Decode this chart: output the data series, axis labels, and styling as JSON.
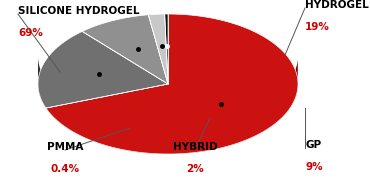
{
  "slices": [
    {
      "label": "SILICONE HYDROGEL",
      "pct_label": "69%",
      "value": 69.0,
      "color": "#cc1111",
      "edge_color": "#7a0000"
    },
    {
      "label": "HYDROGEL",
      "pct_label": "19%",
      "value": 19.0,
      "color": "#707070",
      "edge_color": "#303030"
    },
    {
      "label": "GP",
      "pct_label": "9%",
      "value": 9.0,
      "color": "#909090",
      "edge_color": "#505050"
    },
    {
      "label": "HYBRID",
      "pct_label": "2%",
      "value": 2.0,
      "color": "#c8c8c8",
      "edge_color": "#909090"
    },
    {
      "label": "PMMA",
      "pct_label": "0.4%",
      "value": 0.4,
      "color": "#111111",
      "edge_color": "#000000"
    }
  ],
  "label_color": "#000000",
  "pct_color": "#cc0000",
  "background_color": "#ffffff",
  "start_angle": 90,
  "label_fontsize": 7.5,
  "pct_fontsize": 7.5
}
